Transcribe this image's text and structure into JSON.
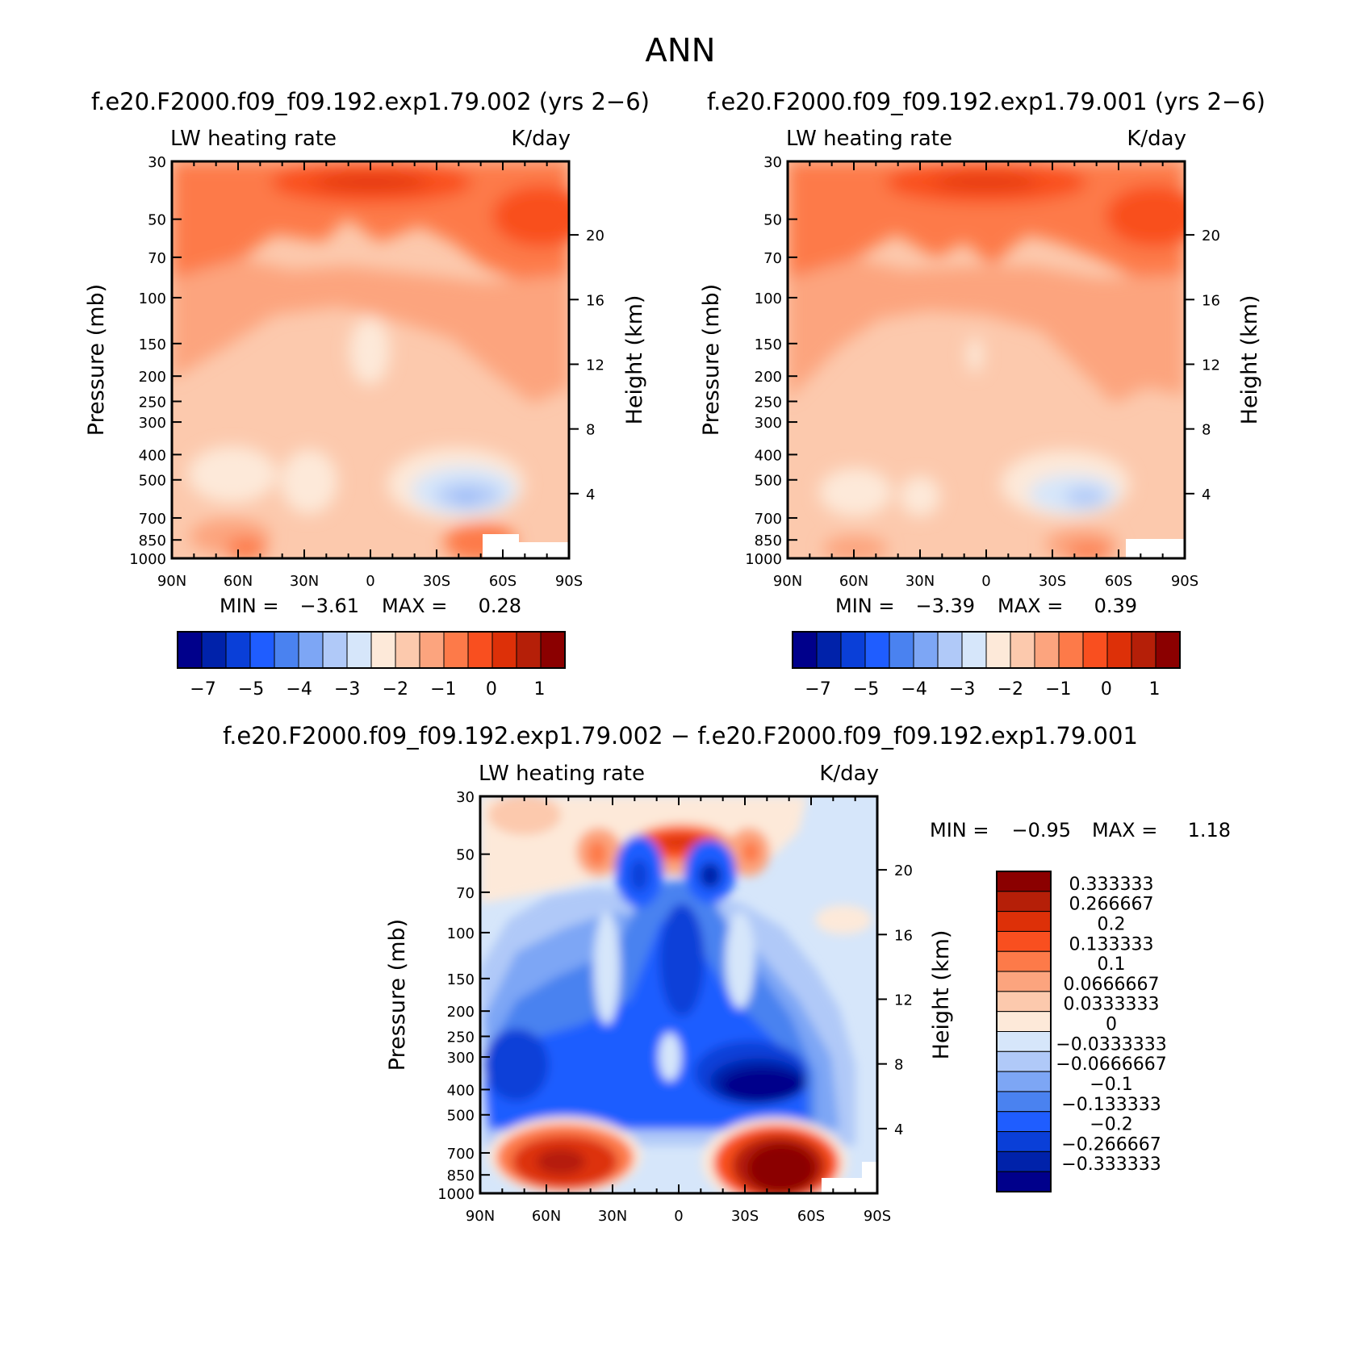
{
  "chart_data": [
    {
      "type": "contour",
      "figure_title": "ANN",
      "case_title": "f.e20.F2000.f09_f09.192.exp1.79.002 (yrs 2−6)",
      "variable_label": "LW heating rate",
      "units_label": "K/day",
      "ylabel": "Pressure (mb)",
      "ylabel_right": "Height (km)",
      "xticks": [
        "90N",
        "60N",
        "30N",
        "0",
        "30S",
        "60S",
        "90S"
      ],
      "yticks": [
        "30",
        "50",
        "70",
        "100",
        "150",
        "200",
        "250",
        "300",
        "400",
        "500",
        "700",
        "850",
        "1000"
      ],
      "height_ticks": [
        "20",
        "16",
        "12",
        "8",
        "4"
      ],
      "ylim": [
        30,
        1000
      ],
      "min_label": "MIN =",
      "min_value": "−3.61",
      "max_label": "MAX =",
      "max_value": "0.28",
      "colorbar_labels": [
        "−7",
        "−5",
        "−4",
        "−3",
        "−2",
        "−1",
        "0",
        "1"
      ]
    },
    {
      "type": "contour",
      "case_title": "f.e20.F2000.f09_f09.192.exp1.79.001 (yrs 2−6)",
      "variable_label": "LW heating rate",
      "units_label": "K/day",
      "ylabel": "Pressure (mb)",
      "ylabel_right": "Height (km)",
      "xticks": [
        "90N",
        "60N",
        "30N",
        "0",
        "30S",
        "60S",
        "90S"
      ],
      "yticks": [
        "30",
        "50",
        "70",
        "100",
        "150",
        "200",
        "250",
        "300",
        "400",
        "500",
        "700",
        "850",
        "1000"
      ],
      "height_ticks": [
        "20",
        "16",
        "12",
        "8",
        "4"
      ],
      "ylim": [
        30,
        1000
      ],
      "min_label": "MIN =",
      "min_value": "−3.39",
      "max_label": "MAX =",
      "max_value": "0.39",
      "colorbar_labels": [
        "−7",
        "−5",
        "−4",
        "−3",
        "−2",
        "−1",
        "0",
        "1"
      ]
    },
    {
      "type": "contour",
      "case_title": "f.e20.F2000.f09_f09.192.exp1.79.002 − f.e20.F2000.f09_f09.192.exp1.79.001",
      "variable_label": "LW heating rate",
      "units_label": "K/day",
      "ylabel": "Pressure (mb)",
      "ylabel_right": "Height (km)",
      "xticks": [
        "90N",
        "60N",
        "30N",
        "0",
        "30S",
        "60S",
        "90S"
      ],
      "yticks": [
        "30",
        "50",
        "70",
        "100",
        "150",
        "200",
        "250",
        "300",
        "400",
        "500",
        "700",
        "850",
        "1000"
      ],
      "height_ticks": [
        "20",
        "16",
        "12",
        "8",
        "4"
      ],
      "ylim": [
        30,
        1000
      ],
      "min_label": "MIN =",
      "min_value": "−0.95",
      "max_label": "MAX =",
      "max_value": "1.18",
      "colorbar_labels": [
        "0.333333",
        "0.266667",
        "0.2",
        "0.133333",
        "0.1",
        "0.0666667",
        "0.0333333",
        "0",
        "−0.0333333",
        "−0.0666667",
        "−0.1",
        "−0.133333",
        "−0.2",
        "−0.266667",
        "−0.333333"
      ]
    }
  ],
  "palette": [
    "#00008b",
    "#0022aa",
    "#0a3fd8",
    "#1f5dff",
    "#4a82f0",
    "#7da6f5",
    "#b0c9f8",
    "#d6e6fa",
    "#fde9d9",
    "#fcc9ad",
    "#fca47e",
    "#fd7a49",
    "#f94f1f",
    "#dd3008",
    "#b51f08",
    "#8b0000"
  ]
}
